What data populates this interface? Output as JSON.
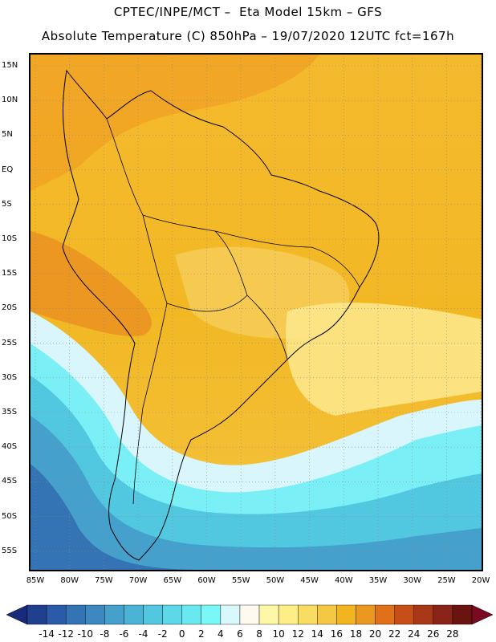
{
  "header": {
    "line1": "CPTEC/INPE/MCT –  Eta Model 15km – GFS",
    "line2": "Absolute Temperature (C) 850hPa – 19/07/2020 12UTC fct=167h"
  },
  "map": {
    "lat_labels": [
      "15N",
      "10N",
      "5N",
      "EQ",
      "5S",
      "10S",
      "15S",
      "20S",
      "25S",
      "30S",
      "35S",
      "40S",
      "45S",
      "50S",
      "55S"
    ],
    "lon_labels": [
      "85W",
      "80W",
      "75W",
      "70W",
      "65W",
      "60W",
      "55W",
      "50W",
      "45W",
      "40W",
      "35W",
      "30W",
      "25W",
      "20W"
    ]
  },
  "colorbar": {
    "labels": [
      "-14",
      "-12",
      "-10",
      "-8",
      "-6",
      "-4",
      "-2",
      "0",
      "2",
      "4",
      "6",
      "8",
      "10",
      "12",
      "14",
      "16",
      "18",
      "20",
      "22",
      "24",
      "26",
      "28"
    ],
    "colors": [
      "#1f3f8f",
      "#2a5aa8",
      "#3474b4",
      "#3d88c0",
      "#46a0cc",
      "#4bb4d6",
      "#52c8e0",
      "#5cd8e8",
      "#6ae8f0",
      "#7af8f8",
      "#d8f8fc",
      "#fffaf0",
      "#fff7a8",
      "#fdee88",
      "#f9dd62",
      "#f5c843",
      "#f2b520",
      "#ea9820",
      "#e0701a",
      "#c84e18",
      "#a83818",
      "#8a2418",
      "#6a1410"
    ],
    "arrow_low_color": "#1a2a7a",
    "arrow_high_color": "#7a0a20"
  }
}
